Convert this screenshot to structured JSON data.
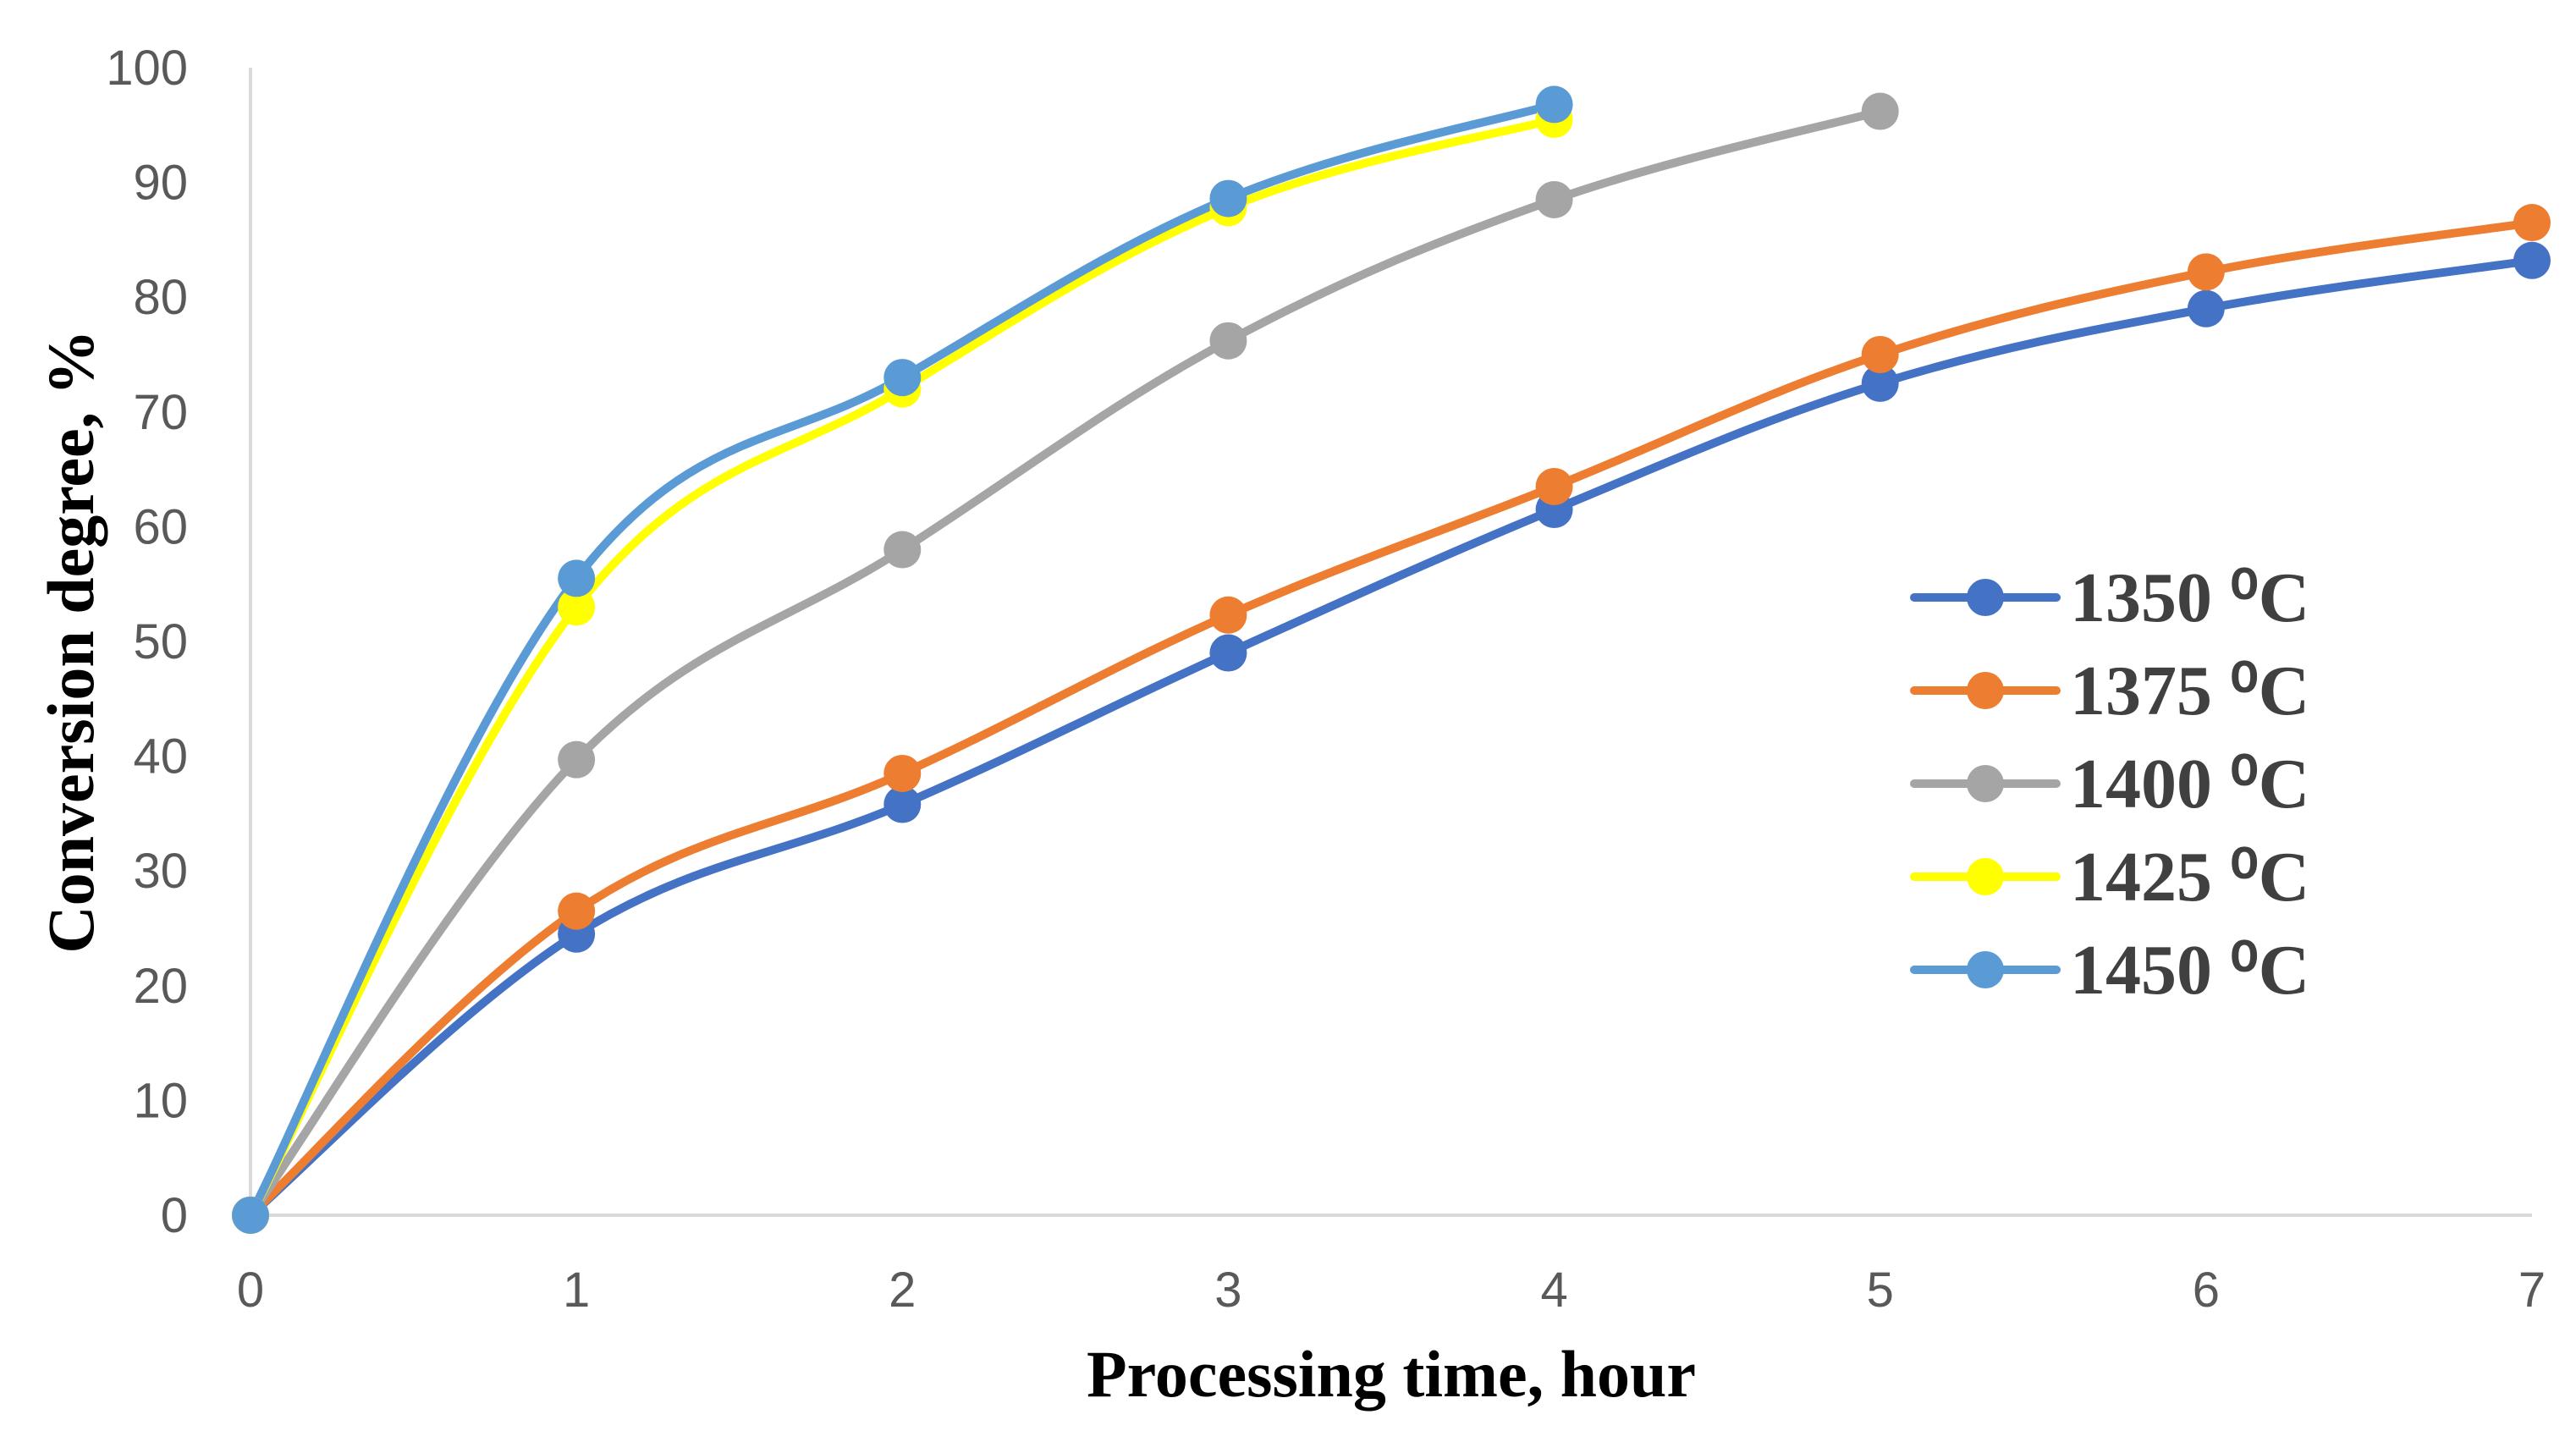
{
  "chart_data": {
    "type": "line",
    "title": "",
    "xlabel": "Processing time, hour",
    "ylabel": "Conversion degree, %",
    "xlim": [
      0,
      7
    ],
    "ylim": [
      0,
      100
    ],
    "x_ticks": [
      "0",
      "1",
      "2",
      "3",
      "4",
      "5",
      "6",
      "7"
    ],
    "y_ticks": [
      "0",
      "10",
      "20",
      "30",
      "40",
      "50",
      "60",
      "70",
      "80",
      "90",
      "100"
    ],
    "grid": false,
    "smooth": true,
    "legend_position": "right",
    "series": [
      {
        "name": "1350 ⁰C",
        "color": "#4472c4",
        "x": [
          0,
          1,
          2,
          3,
          4,
          5,
          6,
          7
        ],
        "values": [
          0,
          24.5,
          35.8,
          49,
          61.5,
          72.5,
          79,
          83.2
        ]
      },
      {
        "name": "1375 ⁰C",
        "color": "#ed7d31",
        "x": [
          0,
          1,
          2,
          3,
          4,
          5,
          6,
          7
        ],
        "values": [
          0,
          26.5,
          38.5,
          52.3,
          63.5,
          75,
          82.2,
          86.5
        ]
      },
      {
        "name": "1400 ⁰C",
        "color": "#a5a5a5",
        "x": [
          0,
          1,
          2,
          3,
          4,
          5
        ],
        "values": [
          0,
          39.7,
          58,
          76.2,
          88.5,
          96.2
        ]
      },
      {
        "name": "1425 ⁰C",
        "color": "#ffff00",
        "x": [
          0,
          1,
          2,
          3,
          4
        ],
        "values": [
          0,
          53,
          72,
          87.8,
          95.5
        ]
      },
      {
        "name": "1450 ⁰C",
        "color": "#5b9bd5",
        "x": [
          0,
          1,
          2,
          3,
          4
        ],
        "values": [
          0,
          55.5,
          73,
          88.6,
          96.8
        ]
      }
    ]
  }
}
